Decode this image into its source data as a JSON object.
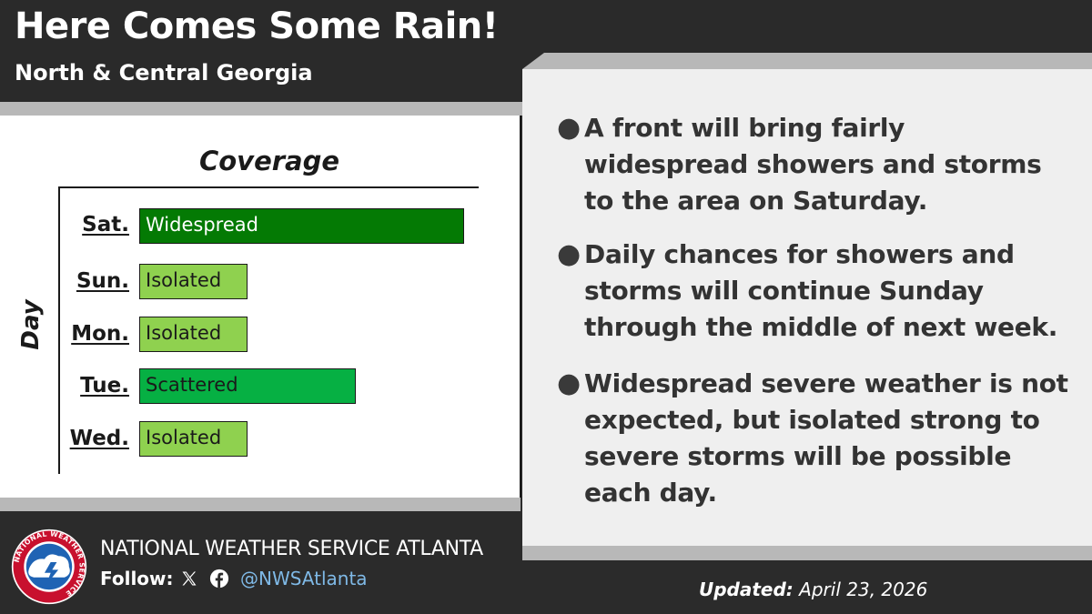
{
  "header": {
    "title": "Here Comes Some Rain!",
    "subtitle": "North & Central Georgia"
  },
  "chart_data": {
    "type": "bar",
    "title": "Coverage",
    "ylabel": "Day",
    "categories": [
      "Sat.",
      "Sun.",
      "Mon.",
      "Tue.",
      "Wed."
    ],
    "values": [
      "Widespread",
      "Isolated",
      "Isolated",
      "Scattered",
      "Isolated"
    ],
    "levels": [
      3,
      1,
      1,
      2,
      1
    ],
    "level_max": 3,
    "colors": {
      "Widespread": "#047a04",
      "Scattered": "#06b043",
      "Isolated": "#8fd14f"
    }
  },
  "bullets": [
    "A front will bring fairly widespread showers and storms to the area on Saturday.",
    "Daily chances for showers and storms will continue Sunday through the middle of next week.",
    "Widespread severe weather is not expected, but isolated strong to severe storms will be possible each day."
  ],
  "footer": {
    "org_name": "NATIONAL WEATHER SERVICE ATLANTA",
    "follow_label": "Follow:",
    "handle": "@NWSAtlanta",
    "updated_label": "Updated:",
    "updated_date": "April 23, 2026",
    "logo_text": "NATIONAL WEATHER SERVICE",
    "icons": [
      "x-icon",
      "facebook-icon",
      "nws-logo"
    ]
  }
}
